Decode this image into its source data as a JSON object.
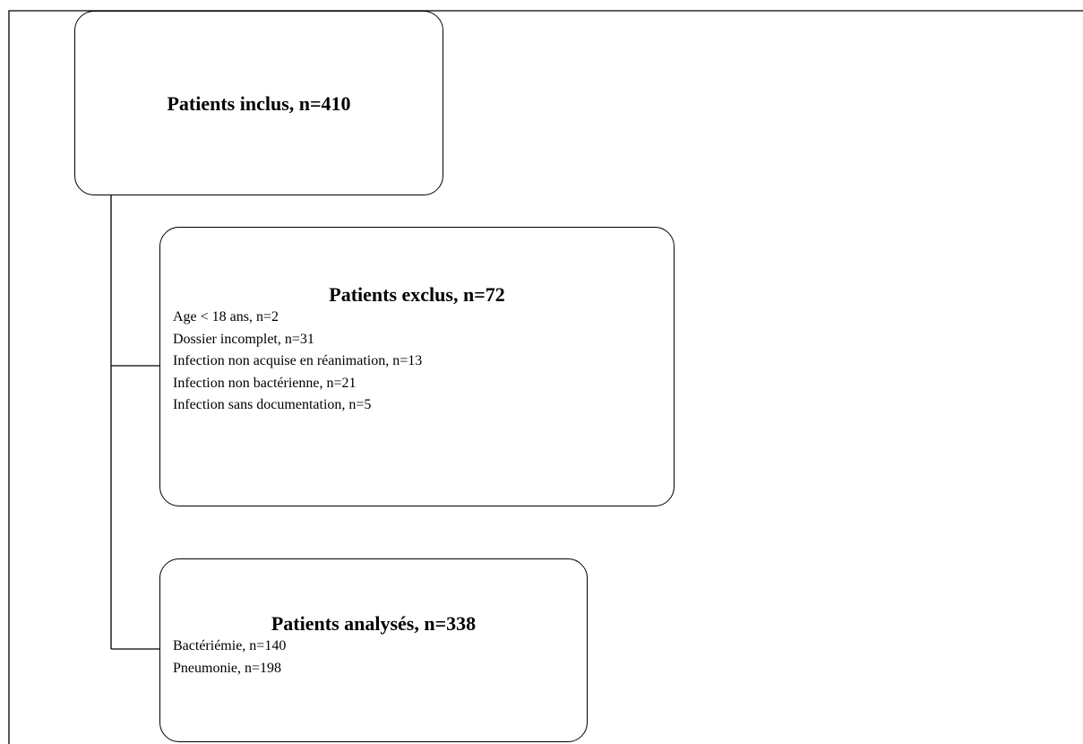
{
  "nodes": [
    {
      "title": "Patients inclus, n=410"
    },
    {
      "title": "Patients exclus, n=72",
      "items": [
        "Age < 18 ans, n=2",
        "Dossier incomplet, n=31",
        "Infection non acquise en réanimation, n=13",
        "Infection non bactérienne, n=21",
        "Infection sans documentation, n=5"
      ]
    },
    {
      "title": "Patients analysés, n=338",
      "items": [
        "Bactériémie, n=140",
        "Pneumonie, n=198"
      ]
    }
  ]
}
